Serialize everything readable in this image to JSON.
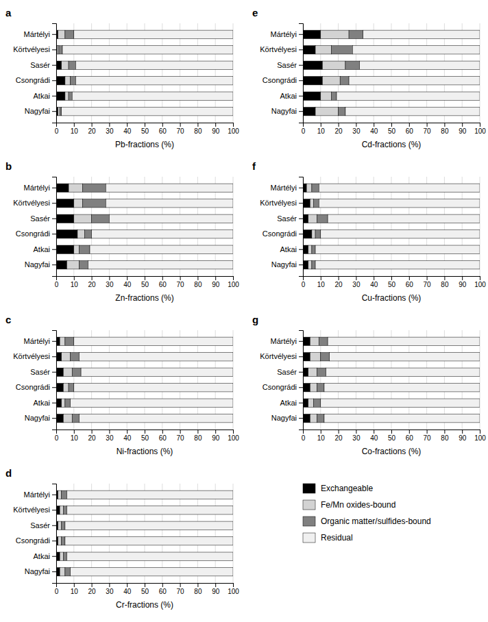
{
  "chart_data": [
    {
      "type": "bar",
      "orientation": "horizontal",
      "stacked": true,
      "grid": true,
      "title": "a",
      "xlabel": "Pb-fractions (%)",
      "categories": [
        "Mártélyi",
        "Körtvélyesi",
        "Sasér",
        "Csongrádi",
        "Atkai",
        "Nagyfai"
      ],
      "series": [
        {
          "name": "Exchangeable",
          "color": "#000000",
          "values": [
            1,
            0.5,
            3,
            5,
            5,
            1
          ]
        },
        {
          "name": "Fe/Mn oxides-bound",
          "color": "#d3d3d3",
          "values": [
            4,
            1,
            4,
            3,
            2,
            1
          ]
        },
        {
          "name": "Organic matter/sulfides-bound",
          "color": "#808080",
          "values": [
            5,
            2,
            4,
            3,
            2,
            1
          ]
        },
        {
          "name": "Residual",
          "color": "#f0f0f0",
          "values": [
            90,
            96.5,
            89,
            89,
            91,
            97
          ]
        }
      ],
      "xlim": [
        0,
        100
      ],
      "xticks": [
        0,
        10,
        20,
        30,
        40,
        50,
        60,
        70,
        80,
        90,
        100
      ]
    },
    {
      "type": "bar",
      "orientation": "horizontal",
      "stacked": true,
      "grid": true,
      "title": "b",
      "xlabel": "Zn-fractions (%)",
      "categories": [
        "Mártélyi",
        "Körtvélyesi",
        "Sasér",
        "Csongrádi",
        "Atkai",
        "Nagyfai"
      ],
      "series": [
        {
          "color": "#000000",
          "values": [
            7,
            10,
            10,
            12,
            10,
            6
          ]
        },
        {
          "color": "#d3d3d3",
          "values": [
            8,
            5,
            10,
            4,
            3,
            7
          ]
        },
        {
          "color": "#808080",
          "values": [
            13,
            13,
            10,
            4,
            6,
            5
          ]
        },
        {
          "color": "#f0f0f0",
          "values": [
            72,
            72,
            70,
            80,
            81,
            82
          ]
        }
      ],
      "xlim": [
        0,
        100
      ],
      "xticks": [
        0,
        10,
        20,
        30,
        40,
        50,
        60,
        70,
        80,
        90,
        100
      ]
    },
    {
      "type": "bar",
      "orientation": "horizontal",
      "stacked": true,
      "grid": true,
      "title": "c",
      "xlabel": "Ni-fractions (%)",
      "categories": [
        "Mártélyi",
        "Körtvélyesi",
        "Sasér",
        "Csongrádi",
        "Atkai",
        "Nagyfai"
      ],
      "series": [
        {
          "color": "#000000",
          "values": [
            2,
            3,
            4,
            4,
            3,
            4
          ]
        },
        {
          "color": "#d3d3d3",
          "values": [
            3,
            5,
            5,
            3,
            2,
            5
          ]
        },
        {
          "color": "#808080",
          "values": [
            5,
            5,
            5,
            3,
            3,
            4
          ]
        },
        {
          "color": "#f0f0f0",
          "values": [
            90,
            87,
            86,
            90,
            92,
            87
          ]
        }
      ],
      "xlim": [
        0,
        100
      ],
      "xticks": [
        0,
        10,
        20,
        30,
        40,
        50,
        60,
        70,
        80,
        90,
        100
      ]
    },
    {
      "type": "bar",
      "orientation": "horizontal",
      "stacked": true,
      "grid": true,
      "title": "d",
      "xlabel": "Cr-fractions (%)",
      "categories": [
        "Mártélyi",
        "Körtvélyesi",
        "Sasér",
        "Csongrádi",
        "Atkai",
        "Nagyfai"
      ],
      "series": [
        {
          "color": "#000000",
          "values": [
            1,
            2,
            1,
            1,
            2,
            2
          ]
        },
        {
          "color": "#d3d3d3",
          "values": [
            2,
            2,
            2,
            2,
            2,
            3
          ]
        },
        {
          "color": "#808080",
          "values": [
            3,
            2,
            2,
            2,
            2,
            3
          ]
        },
        {
          "color": "#f0f0f0",
          "values": [
            94,
            94,
            95,
            95,
            94,
            92
          ]
        }
      ],
      "xlim": [
        0,
        100
      ],
      "xticks": [
        0,
        10,
        20,
        30,
        40,
        50,
        60,
        70,
        80,
        90,
        100
      ]
    },
    {
      "type": "bar",
      "orientation": "horizontal",
      "stacked": true,
      "grid": true,
      "title": "e",
      "xlabel": "Cd-fractions (%)",
      "categories": [
        "Mártélyi",
        "Körtvélyesi",
        "Sasér",
        "Csongrádi",
        "Atkai",
        "Nagyfai"
      ],
      "series": [
        {
          "color": "#000000",
          "values": [
            10,
            7,
            11,
            11,
            10,
            7
          ]
        },
        {
          "color": "#d3d3d3",
          "values": [
            16,
            9,
            13,
            10,
            6,
            13
          ]
        },
        {
          "color": "#808080",
          "values": [
            8,
            12,
            8,
            5,
            3,
            4
          ]
        },
        {
          "color": "#f0f0f0",
          "values": [
            66,
            72,
            68,
            74,
            81,
            76
          ]
        }
      ],
      "xlim": [
        0,
        100
      ],
      "xticks": [
        0,
        10,
        20,
        30,
        40,
        50,
        60,
        70,
        80,
        90,
        100
      ]
    },
    {
      "type": "bar",
      "orientation": "horizontal",
      "stacked": true,
      "grid": true,
      "title": "f",
      "xlabel": "Cu-fractions (%)",
      "categories": [
        "Mártélyi",
        "Körtvélyesi",
        "Sasér",
        "Csongrádi",
        "Atkai",
        "Nagyfai"
      ],
      "series": [
        {
          "color": "#000000",
          "values": [
            2,
            4,
            3,
            5,
            3,
            3
          ]
        },
        {
          "color": "#d3d3d3",
          "values": [
            3,
            2,
            5,
            2,
            2,
            2
          ]
        },
        {
          "color": "#808080",
          "values": [
            4,
            3,
            6,
            3,
            2,
            2
          ]
        },
        {
          "color": "#f0f0f0",
          "values": [
            91,
            91,
            86,
            90,
            93,
            93
          ]
        }
      ],
      "xlim": [
        0,
        100
      ],
      "xticks": [
        0,
        10,
        20,
        30,
        40,
        50,
        60,
        70,
        80,
        90,
        100
      ]
    },
    {
      "type": "bar",
      "orientation": "horizontal",
      "stacked": true,
      "grid": true,
      "title": "g",
      "xlabel": "Co-fractions (%)",
      "categories": [
        "Mártélyi",
        "Körtvélyesi",
        "Sasér",
        "Csongrádi",
        "Atkai",
        "Nagyfai"
      ],
      "series": [
        {
          "color": "#000000",
          "values": [
            4,
            4,
            3,
            4,
            3,
            4
          ]
        },
        {
          "color": "#d3d3d3",
          "values": [
            5,
            6,
            5,
            4,
            3,
            4
          ]
        },
        {
          "color": "#808080",
          "values": [
            5,
            5,
            5,
            4,
            4,
            4
          ]
        },
        {
          "color": "#f0f0f0",
          "values": [
            86,
            85,
            87,
            88,
            90,
            88
          ]
        }
      ],
      "xlim": [
        0,
        100
      ],
      "xticks": [
        0,
        10,
        20,
        30,
        40,
        50,
        60,
        70,
        80,
        90,
        100
      ]
    }
  ]
}
